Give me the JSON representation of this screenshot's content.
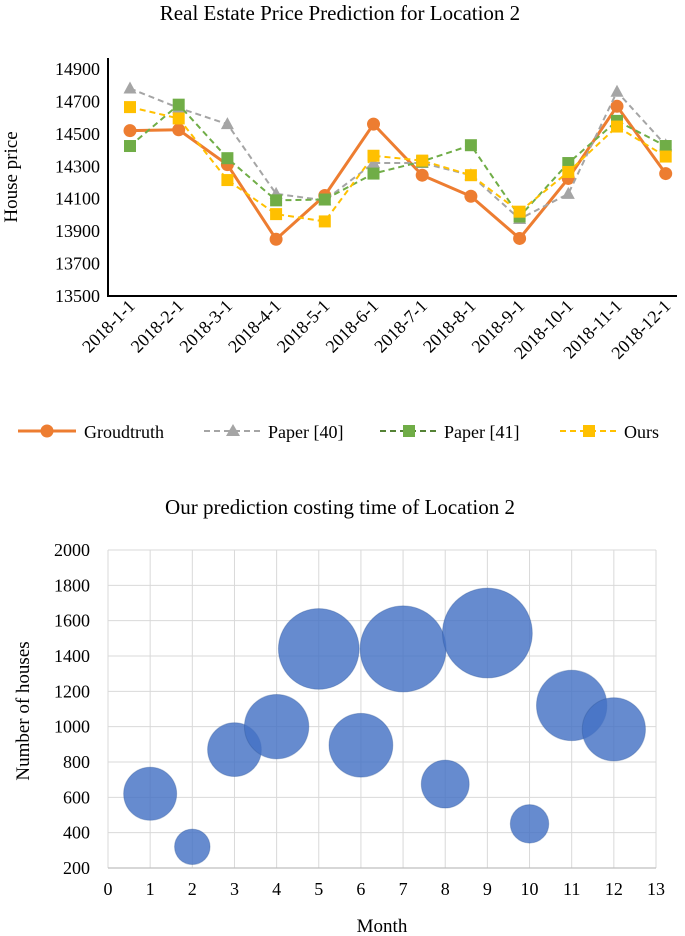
{
  "chart_data": [
    {
      "type": "line",
      "title": "Real Estate Price Prediction for Location 2",
      "xlabel": "",
      "ylabel": "House price",
      "ylim": [
        13500,
        14900
      ],
      "yticks": [
        13500,
        13700,
        13900,
        14100,
        14300,
        14500,
        14700,
        14900
      ],
      "categories": [
        "2018-1-1",
        "2018-2-1",
        "2018-3-1",
        "2018-4-1",
        "2018-5-1",
        "2018-6-1",
        "2018-7-1",
        "2018-8-1",
        "2018-9-1",
        "2018-10-1",
        "2018-11-1",
        "2018-12-1"
      ],
      "series": [
        {
          "name": "Groudtruth",
          "color": "#ED7D31",
          "dashed": false,
          "marker": "circle",
          "values": [
            14520,
            14525,
            14310,
            13850,
            14120,
            14560,
            14245,
            14115,
            13855,
            14225,
            14670,
            14255
          ]
        },
        {
          "name": "Paper [40]",
          "color": "#A5A5A5",
          "dashed": true,
          "marker": "triangle",
          "values": [
            14780,
            14660,
            14560,
            14130,
            14090,
            14320,
            14320,
            14245,
            13975,
            14130,
            14760,
            14430
          ]
        },
        {
          "name": "Paper [41]",
          "color": "#70AD47",
          "dashed": true,
          "marker": "square",
          "values": [
            14425,
            14680,
            14350,
            14090,
            14095,
            14255,
            14330,
            14430,
            13990,
            14320,
            14580,
            14425
          ]
        },
        {
          "name": "Ours",
          "color": "#FFC000",
          "dashed": true,
          "marker": "square",
          "values": [
            14665,
            14595,
            14215,
            14005,
            13960,
            14365,
            14335,
            14245,
            14020,
            14265,
            14545,
            14360
          ]
        }
      ],
      "legend": "bottom"
    },
    {
      "type": "bubble",
      "title": "Our prediction costing time of Location 2",
      "xlabel": "Month",
      "ylabel": "Number of houses",
      "xlim": [
        0,
        13
      ],
      "ylim": [
        200,
        2000
      ],
      "xticks": [
        0,
        1,
        2,
        3,
        4,
        5,
        6,
        7,
        8,
        9,
        10,
        11,
        12,
        13
      ],
      "yticks": [
        200,
        400,
        600,
        800,
        1000,
        1200,
        1400,
        1600,
        1800,
        2000
      ],
      "color": "#4472C4",
      "points": [
        {
          "x": 1,
          "y": 620,
          "size": 0.38
        },
        {
          "x": 2,
          "y": 320,
          "size": 0.17
        },
        {
          "x": 3,
          "y": 870,
          "size": 0.39
        },
        {
          "x": 4,
          "y": 1000,
          "size": 0.56
        },
        {
          "x": 5,
          "y": 1440,
          "size": 0.88
        },
        {
          "x": 6,
          "y": 895,
          "size": 0.55
        },
        {
          "x": 7,
          "y": 1440,
          "size": 1.0
        },
        {
          "x": 8,
          "y": 675,
          "size": 0.31
        },
        {
          "x": 9,
          "y": 1530,
          "size": 1.09
        },
        {
          "x": 10,
          "y": 450,
          "size": 0.2
        },
        {
          "x": 11,
          "y": 1120,
          "size": 0.67
        },
        {
          "x": 12,
          "y": 985,
          "size": 0.54
        }
      ]
    }
  ]
}
